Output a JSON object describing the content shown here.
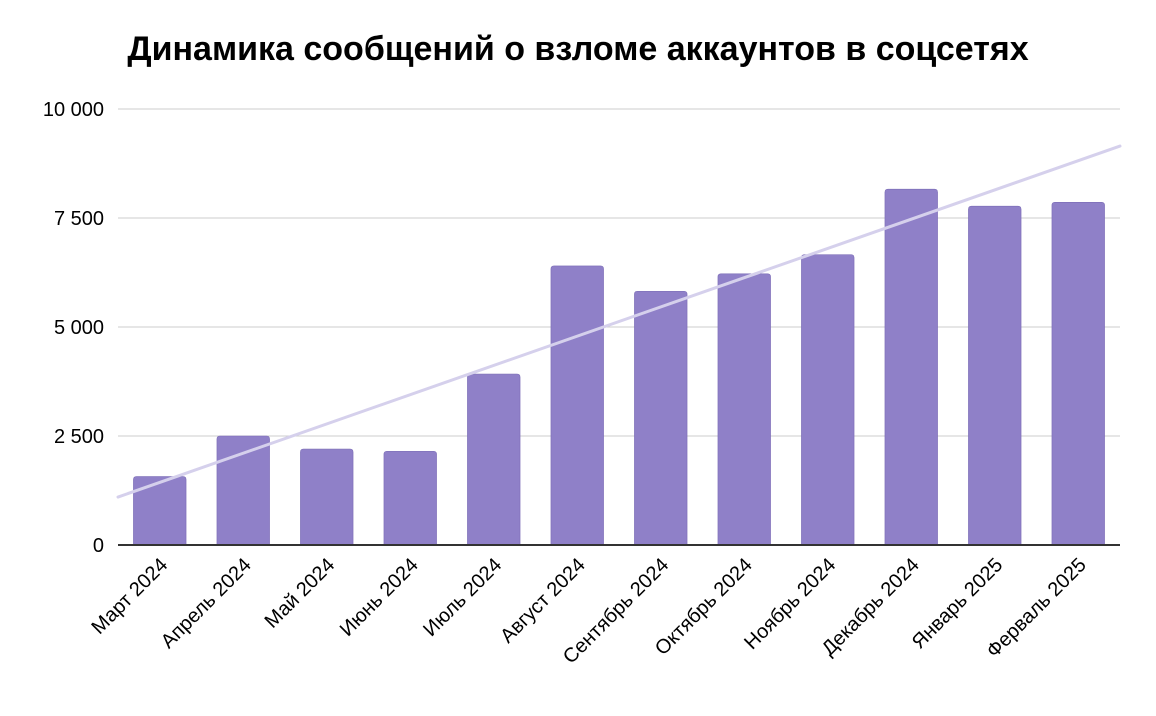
{
  "chart_data": {
    "type": "bar",
    "title": "Динамика сообщений о взломе аккаунтов в соцсетях",
    "xlabel": "",
    "ylabel": "",
    "ylim": [
      0,
      10000
    ],
    "yticks": [
      0,
      2500,
      5000,
      7500,
      10000
    ],
    "ytick_labels": [
      "0",
      "2 500",
      "5 000",
      "7 500",
      "10 000"
    ],
    "grid": true,
    "legend": "none",
    "trendline": {
      "type": "linear",
      "color": "#d5d0ec",
      "start": 1100,
      "end": 9150
    },
    "categories": [
      "Март 2024",
      "Апрель 2024",
      "Май 2024",
      "Июнь 2024",
      "Июль 2024",
      "Август 2024",
      "Сентябрь 2024",
      "Октябрь 2024",
      "Ноябрь 2024",
      "Декабрь 2024",
      "Январь 2025",
      "Ферваль 2025"
    ],
    "series": [
      {
        "values": [
          1570,
          2500,
          2200,
          2150,
          3920,
          6400,
          5820,
          6220,
          6660,
          8160,
          7770,
          7860
        ],
        "color": "#8f80c8"
      }
    ]
  }
}
